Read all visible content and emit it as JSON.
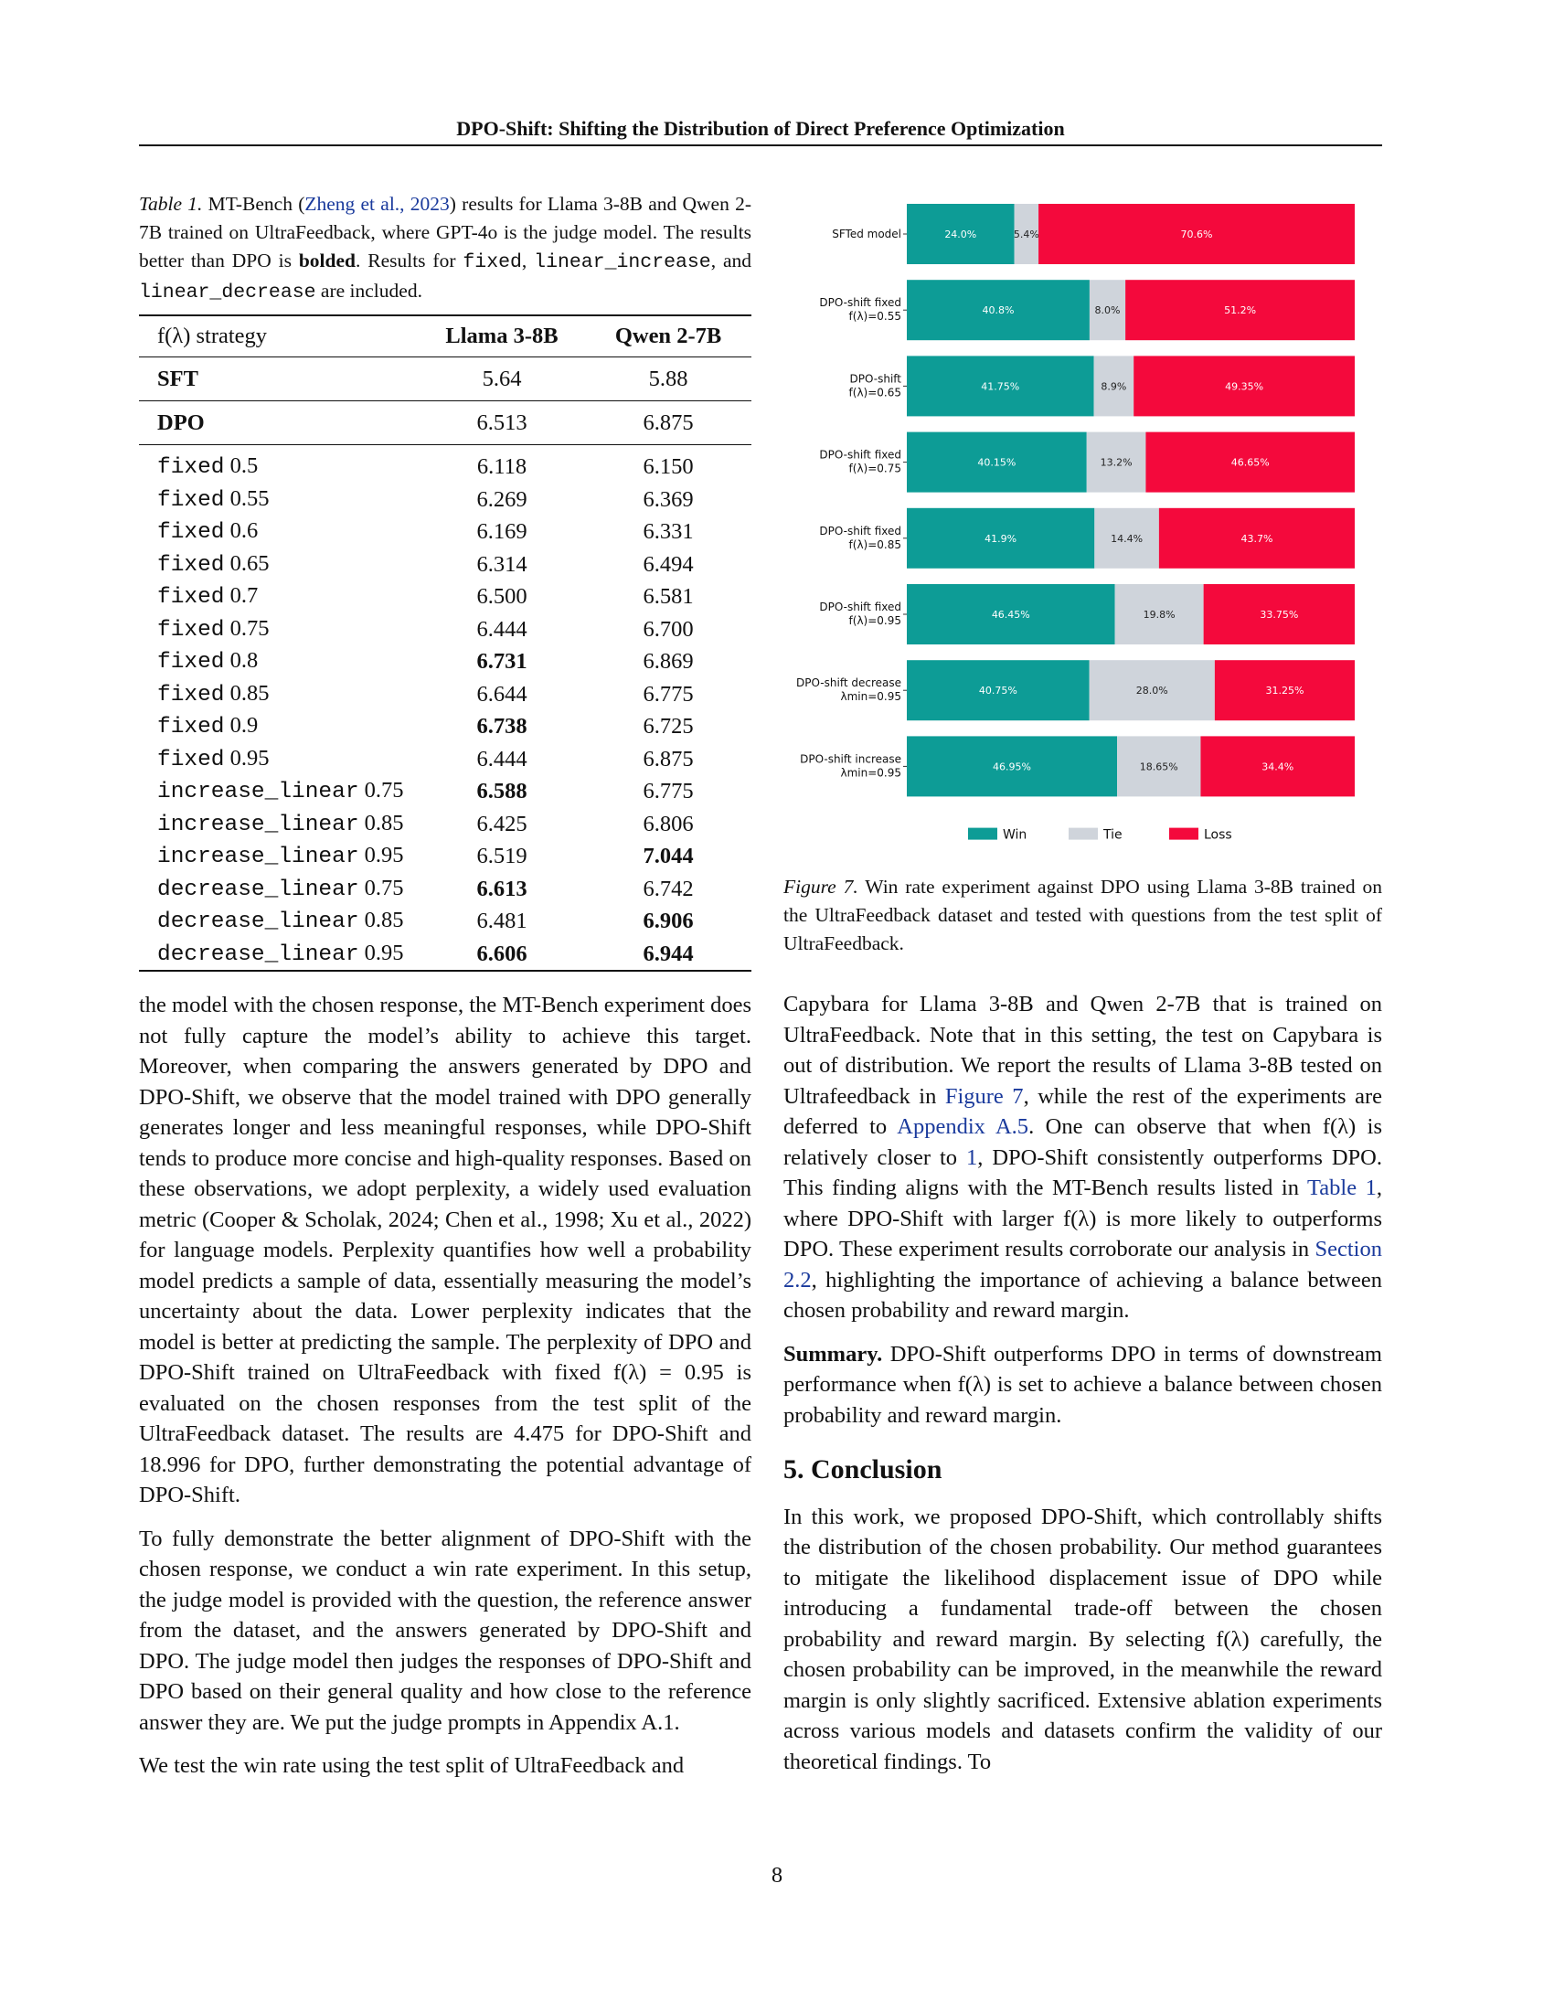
{
  "header": {
    "title": "DPO-Shift: Shifting the Distribution of Direct Preference Optimization"
  },
  "table1": {
    "label": "Table 1.",
    "caption_pre": " MT-Bench (",
    "caption_cite": "Zheng et al., 2023",
    "caption_mid": ") results for Llama 3-8B and Qwen 2-7B trained on UltraFeedback, where GPT-4o is the judge model. The results better than DPO is ",
    "caption_bold": "bolded",
    "caption_mid2": ". Results for ",
    "caption_code1": "fixed",
    "caption_comma1": ", ",
    "caption_code2": "linear_increase",
    "caption_and": ", and ",
    "caption_code3": "linear_decrease",
    "caption_end": " are included.",
    "columns": [
      "f(λ) strategy",
      "Llama 3-8B",
      "Qwen 2-7B"
    ],
    "sft": {
      "name": "SFT",
      "llama": "5.64",
      "qwen": "5.88"
    },
    "dpo": {
      "name": "DPO",
      "llama": "6.513",
      "qwen": "6.875"
    },
    "rows": [
      {
        "method": "fixed",
        "param": "0.5",
        "llama": "6.118",
        "qwen": "6.150",
        "lb": false,
        "qb": false
      },
      {
        "method": "fixed",
        "param": "0.55",
        "llama": "6.269",
        "qwen": "6.369",
        "lb": false,
        "qb": false
      },
      {
        "method": "fixed",
        "param": "0.6",
        "llama": "6.169",
        "qwen": "6.331",
        "lb": false,
        "qb": false
      },
      {
        "method": "fixed",
        "param": "0.65",
        "llama": "6.314",
        "qwen": "6.494",
        "lb": false,
        "qb": false
      },
      {
        "method": "fixed",
        "param": "0.7",
        "llama": "6.500",
        "qwen": "6.581",
        "lb": false,
        "qb": false
      },
      {
        "method": "fixed",
        "param": "0.75",
        "llama": "6.444",
        "qwen": "6.700",
        "lb": false,
        "qb": false
      },
      {
        "method": "fixed",
        "param": "0.8",
        "llama": "6.731",
        "qwen": "6.869",
        "lb": true,
        "qb": false
      },
      {
        "method": "fixed",
        "param": "0.85",
        "llama": "6.644",
        "qwen": "6.775",
        "lb": false,
        "qb": false
      },
      {
        "method": "fixed",
        "param": "0.9",
        "llama": "6.738",
        "qwen": "6.725",
        "lb": true,
        "qb": false
      },
      {
        "method": "fixed",
        "param": "0.95",
        "llama": "6.444",
        "qwen": "6.875",
        "lb": false,
        "qb": false
      },
      {
        "method": "increase_linear",
        "param": "0.75",
        "llama": "6.588",
        "qwen": "6.775",
        "lb": true,
        "qb": false
      },
      {
        "method": "increase_linear",
        "param": "0.85",
        "llama": "6.425",
        "qwen": "6.806",
        "lb": false,
        "qb": false
      },
      {
        "method": "increase_linear",
        "param": "0.95",
        "llama": "6.519",
        "qwen": "7.044",
        "lb": false,
        "qb": true
      },
      {
        "method": "decrease_linear",
        "param": "0.75",
        "llama": "6.613",
        "qwen": "6.742",
        "lb": true,
        "qb": false
      },
      {
        "method": "decrease_linear",
        "param": "0.85",
        "llama": "6.481",
        "qwen": "6.906",
        "lb": false,
        "qb": true
      },
      {
        "method": "decrease_linear",
        "param": "0.95",
        "llama": "6.606",
        "qwen": "6.944",
        "lb": true,
        "qb": true
      }
    ]
  },
  "left_text": {
    "p1": "the model with the chosen response, the MT-Bench experiment does not fully capture the model’s ability to achieve this target. Moreover, when comparing the answers generated by DPO and DPO-Shift, we observe that the model trained with DPO generally generates longer and less meaningful responses, while DPO-Shift tends to produce more concise and high-quality responses. Based on these observations, we adopt perplexity, a widely used evaluation metric (Cooper & Scholak, 2024; Chen et al., 1998; Xu et al., 2022) for language models. Perplexity quantifies how well a probability model predicts a sample of data, essentially measuring the model’s uncertainty about the data. Lower perplexity indicates that the model is better at predicting the sample. The perplexity of DPO and DPO-Shift trained on UltraFeedback with fixed f(λ) = 0.95 is evaluated on the chosen responses from the test split of the UltraFeedback dataset. The results are 4.475 for DPO-Shift and 18.996 for DPO, further demonstrating the potential advantage of DPO-Shift.",
    "p2": "To fully demonstrate the better alignment of DPO-Shift with the chosen response, we conduct a win rate experiment. In this setup, the judge model is provided with the question, the reference answer from the dataset, and the answers generated by DPO-Shift and DPO. The judge model then judges the responses of DPO-Shift and DPO based on their general quality and how close to the reference answer they are. We put the judge prompts in Appendix A.1.",
    "p3": "We test the win rate using the test split of UltraFeedback and"
  },
  "chart_data": {
    "type": "bar",
    "orientation": "horizontal-stacked",
    "categories": [
      [
        "SFTed model"
      ],
      [
        "DPO-shift fixed",
        "f(λ)=0.55"
      ],
      [
        "DPO-shift",
        "f(λ)=0.65"
      ],
      [
        "DPO-shift fixed",
        "f(λ)=0.75"
      ],
      [
        "DPO-shift fixed",
        "f(λ)=0.85"
      ],
      [
        "DPO-shift fixed",
        "f(λ)=0.95"
      ],
      [
        "DPO-shift decrease",
        "λmin=0.95"
      ],
      [
        "DPO-shift increase",
        "λmin=0.95"
      ]
    ],
    "series": [
      {
        "name": "Win",
        "color": "#0d9c96",
        "values": [
          24.0,
          40.8,
          41.75,
          40.15,
          41.9,
          46.45,
          40.75,
          46.95
        ],
        "labels": [
          "24.0%",
          "40.8%",
          "41.75%",
          "40.15%",
          "41.9%",
          "46.45%",
          "40.75%",
          "46.95%"
        ]
      },
      {
        "name": "Tie",
        "color": "#cfd4db",
        "values": [
          5.4,
          8.0,
          8.9,
          13.2,
          14.4,
          19.8,
          28.0,
          18.65
        ],
        "labels": [
          "5.4%",
          "8.0%",
          "8.9%",
          "13.2%",
          "14.4%",
          "19.8%",
          "28.0%",
          "18.65%"
        ]
      },
      {
        "name": "Loss",
        "color": "#f4093c",
        "values": [
          70.6,
          51.2,
          49.35,
          46.65,
          43.7,
          33.75,
          31.25,
          34.4
        ],
        "labels": [
          "70.6%",
          "51.2%",
          "49.35%",
          "46.65%",
          "43.7%",
          "33.75%",
          "31.25%",
          "34.4%"
        ]
      }
    ],
    "xlim": [
      0,
      100
    ],
    "legend": "bottom"
  },
  "figure7": {
    "label": "Figure 7.",
    "caption": " Win rate experiment against DPO using Llama 3-8B trained on the UltraFeedback dataset and tested with questions from the test split of UltraFeedback."
  },
  "right_text": {
    "p1_a": "Capybara for Llama 3-8B and Qwen 2-7B that is trained on UltraFeedback. Note that in this setting, the test on Capybara is out of distribution. We report the results of Llama 3-8B tested on Ultrafeedback in ",
    "p1_ref1": "Figure 7",
    "p1_b": ", while the rest of the experiments are deferred to ",
    "p1_ref2": "Appendix A.5",
    "p1_c": ". One can observe that when f(λ) is relatively closer to ",
    "p1_ref3": "1",
    "p1_d": ", DPO-Shift consistently outperforms DPO. This finding aligns with the MT-Bench results listed in ",
    "p1_ref4": "Table 1",
    "p1_e": ", where DPO-Shift with larger f(λ) is more likely to outperforms DPO. These experiment results corroborate our analysis in ",
    "p1_ref5": "Section 2.2",
    "p1_f": ", highlighting the importance of achieving a balance between chosen probability and reward margin.",
    "summary_label": "Summary.",
    "summary": " DPO-Shift outperforms DPO in terms of downstream performance when f(λ) is set to achieve a balance between chosen probability and reward margin.",
    "section_title": "5. Conclusion",
    "conclusion": "In this work, we proposed DPO-Shift, which controllably shifts the distribution of the chosen probability. Our method guarantees to mitigate the likelihood displacement issue of DPO while introducing a fundamental trade-off between the chosen probability and reward margin. By selecting f(λ) carefully, the chosen probability can be improved, in the meanwhile the reward margin is only slightly sacrificed. Extensive ablation experiments across various models and datasets confirm the validity of our theoretical findings. To"
  },
  "page_number": "8"
}
